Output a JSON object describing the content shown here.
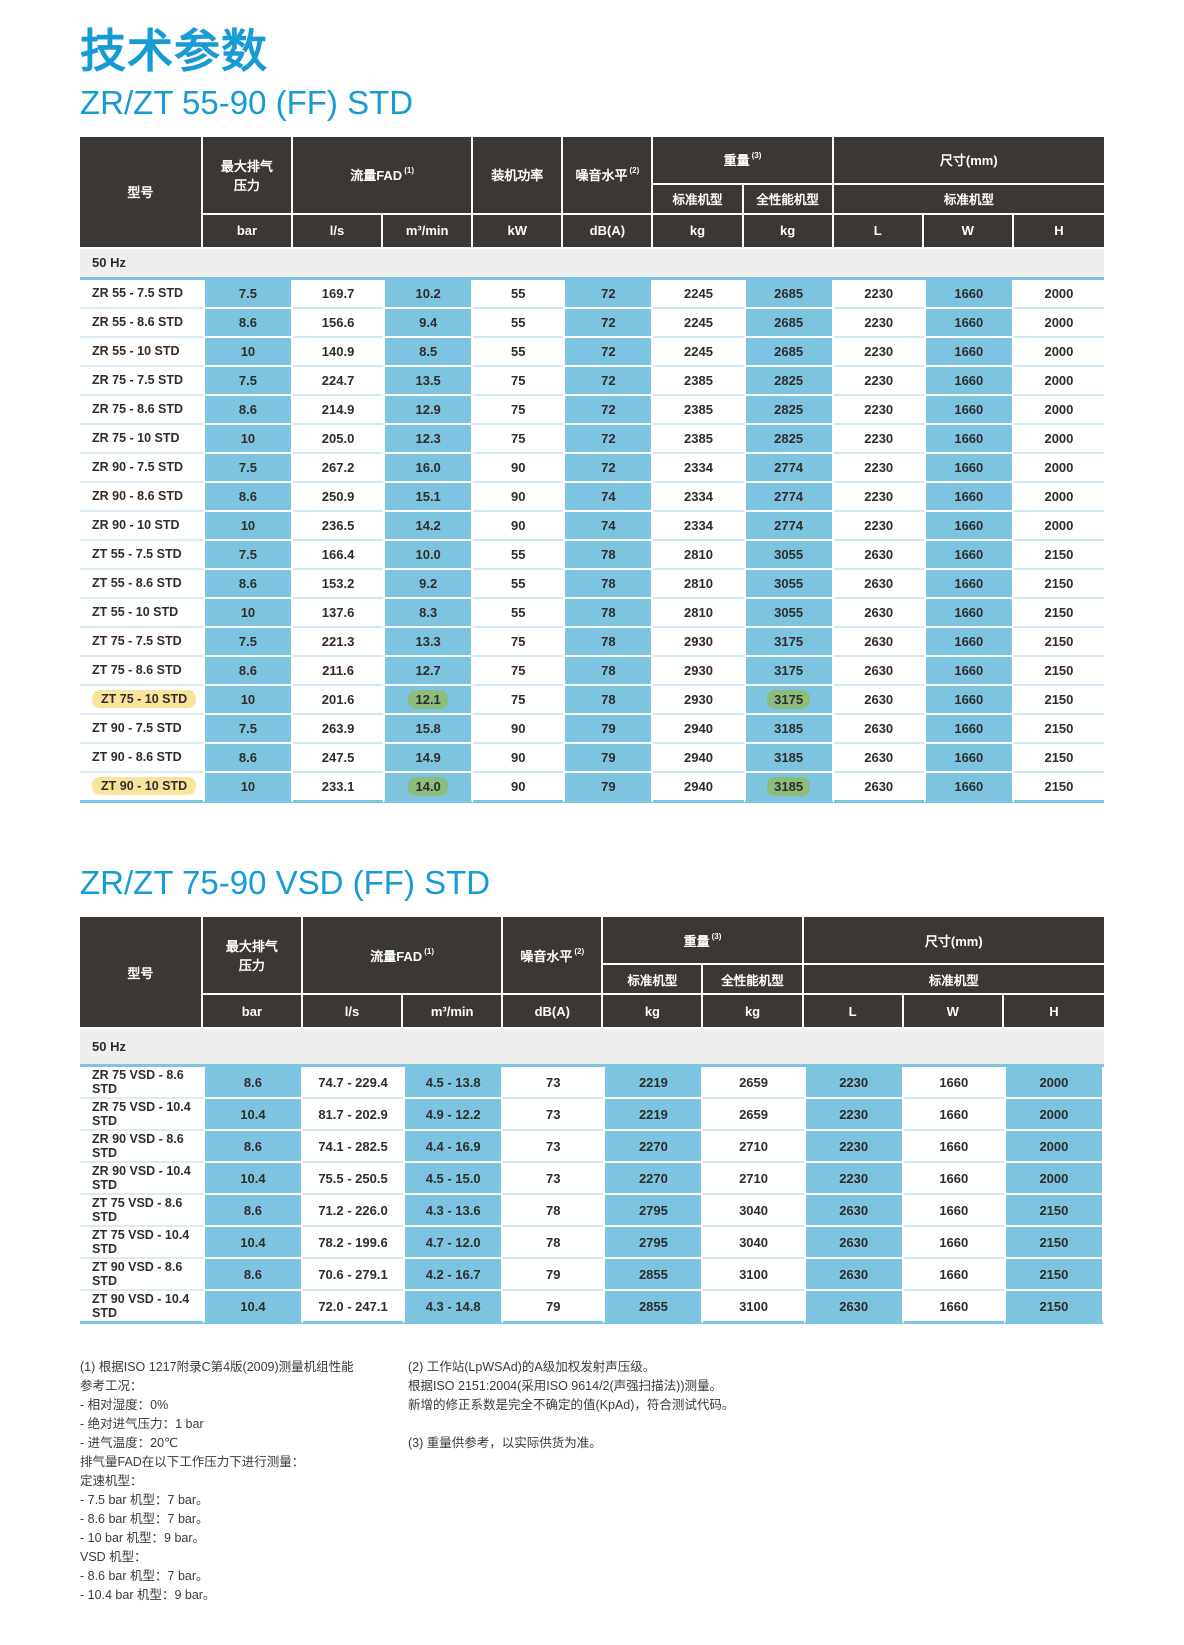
{
  "page": {
    "title": "技术参数"
  },
  "colors": {
    "accent_blue": "#169bd5",
    "header_dark": "#3b3734",
    "cell_blue": "#7dc4e0",
    "row_line_blue": "#cfe9f3",
    "group_band_gray": "#efefef",
    "highlight_yellow": "#f8e49c",
    "highlight_green": "#8cbd7c"
  },
  "table1": {
    "title": "ZR/ZT 55-90 (FF) STD",
    "header": {
      "model": "型号",
      "pressure_l1": "最大排气",
      "pressure_l2": "压力",
      "flow": "流量FAD",
      "flow_note": "(1)",
      "power": "装机功率",
      "noise": "噪音水平",
      "noise_note": "(2)",
      "weight": "重量",
      "weight_note": "(3)",
      "weight_std": "标准机型",
      "weight_full": "全性能机型",
      "dims": "尺寸(mm)",
      "dims_std": "标准机型"
    },
    "units": [
      "bar",
      "l/s",
      "m³/min",
      "kW",
      "dB(A)",
      "kg",
      "kg",
      "L",
      "W",
      "H"
    ],
    "group": "50 Hz",
    "rows": [
      {
        "model": "ZR 55 - 7.5 STD",
        "values": [
          "7.5",
          "169.7",
          "10.2",
          "55",
          "72",
          "2245",
          "2685",
          "2230",
          "1660",
          "2000"
        ]
      },
      {
        "model": "ZR 55 - 8.6 STD",
        "values": [
          "8.6",
          "156.6",
          "9.4",
          "55",
          "72",
          "2245",
          "2685",
          "2230",
          "1660",
          "2000"
        ]
      },
      {
        "model": "ZR 55 - 10 STD",
        "values": [
          "10",
          "140.9",
          "8.5",
          "55",
          "72",
          "2245",
          "2685",
          "2230",
          "1660",
          "2000"
        ]
      },
      {
        "model": "ZR 75 - 7.5 STD",
        "values": [
          "7.5",
          "224.7",
          "13.5",
          "75",
          "72",
          "2385",
          "2825",
          "2230",
          "1660",
          "2000"
        ]
      },
      {
        "model": "ZR 75 - 8.6 STD",
        "values": [
          "8.6",
          "214.9",
          "12.9",
          "75",
          "72",
          "2385",
          "2825",
          "2230",
          "1660",
          "2000"
        ]
      },
      {
        "model": "ZR 75 - 10 STD",
        "values": [
          "10",
          "205.0",
          "12.3",
          "75",
          "72",
          "2385",
          "2825",
          "2230",
          "1660",
          "2000"
        ]
      },
      {
        "model": "ZR 90 - 7.5 STD",
        "values": [
          "7.5",
          "267.2",
          "16.0",
          "90",
          "72",
          "2334",
          "2774",
          "2230",
          "1660",
          "2000"
        ]
      },
      {
        "model": "ZR 90 - 8.6 STD",
        "values": [
          "8.6",
          "250.9",
          "15.1",
          "90",
          "74",
          "2334",
          "2774",
          "2230",
          "1660",
          "2000"
        ]
      },
      {
        "model": "ZR 90 - 10 STD",
        "values": [
          "10",
          "236.5",
          "14.2",
          "90",
          "74",
          "2334",
          "2774",
          "2230",
          "1660",
          "2000"
        ]
      },
      {
        "model": "ZT 55 - 7.5 STD",
        "values": [
          "7.5",
          "166.4",
          "10.0",
          "55",
          "78",
          "2810",
          "3055",
          "2630",
          "1660",
          "2150"
        ]
      },
      {
        "model": "ZT 55 - 8.6 STD",
        "values": [
          "8.6",
          "153.2",
          "9.2",
          "55",
          "78",
          "2810",
          "3055",
          "2630",
          "1660",
          "2150"
        ]
      },
      {
        "model": "ZT 55 - 10 STD",
        "values": [
          "10",
          "137.6",
          "8.3",
          "55",
          "78",
          "2810",
          "3055",
          "2630",
          "1660",
          "2150"
        ]
      },
      {
        "model": "ZT 75 - 7.5 STD",
        "values": [
          "7.5",
          "221.3",
          "13.3",
          "75",
          "78",
          "2930",
          "3175",
          "2630",
          "1660",
          "2150"
        ]
      },
      {
        "model": "ZT 75 - 8.6 STD",
        "values": [
          "8.6",
          "211.6",
          "12.7",
          "75",
          "78",
          "2930",
          "3175",
          "2630",
          "1660",
          "2150"
        ]
      },
      {
        "model": "ZT 75 - 10 STD",
        "model_highlight": "yellow",
        "values": [
          "10",
          "201.6",
          "12.1",
          "75",
          "78",
          "2930",
          "3175",
          "2630",
          "1660",
          "2150"
        ],
        "value_highlights": {
          "2": "green",
          "6": "green"
        }
      },
      {
        "model": "ZT 90 - 7.5 STD",
        "values": [
          "7.5",
          "263.9",
          "15.8",
          "90",
          "79",
          "2940",
          "3185",
          "2630",
          "1660",
          "2150"
        ]
      },
      {
        "model": "ZT 90 - 8.6 STD",
        "values": [
          "8.6",
          "247.5",
          "14.9",
          "90",
          "79",
          "2940",
          "3185",
          "2630",
          "1660",
          "2150"
        ]
      },
      {
        "model": "ZT 90 - 10 STD",
        "model_highlight": "yellow",
        "values": [
          "10",
          "233.1",
          "14.0",
          "90",
          "79",
          "2940",
          "3185",
          "2630",
          "1660",
          "2150"
        ],
        "value_highlights": {
          "2": "green",
          "6": "green"
        }
      }
    ]
  },
  "table2": {
    "title": "ZR/ZT 75-90 VSD (FF) STD",
    "header": {
      "model": "型号",
      "pressure_l1": "最大排气",
      "pressure_l2": "压力",
      "flow": "流量FAD",
      "flow_note": "(1)",
      "noise": "噪音水平",
      "noise_note": "(2)",
      "weight": "重量",
      "weight_note": "(3)",
      "weight_std": "标准机型",
      "weight_full": "全性能机型",
      "dims": "尺寸(mm)",
      "dims_std": "标准机型"
    },
    "units": [
      "bar",
      "l/s",
      "m³/min",
      "dB(A)",
      "kg",
      "kg",
      "L",
      "W",
      "H"
    ],
    "group": "50 Hz",
    "rows": [
      {
        "model": "ZR 75 VSD - 8.6 STD",
        "values": [
          "8.6",
          "74.7 - 229.4",
          "4.5 - 13.8",
          "73",
          "2219",
          "2659",
          "2230",
          "1660",
          "2000"
        ]
      },
      {
        "model": "ZR 75 VSD - 10.4 STD",
        "values": [
          "10.4",
          "81.7 - 202.9",
          "4.9 - 12.2",
          "73",
          "2219",
          "2659",
          "2230",
          "1660",
          "2000"
        ]
      },
      {
        "model": "ZR 90 VSD - 8.6 STD",
        "values": [
          "8.6",
          "74.1 - 282.5",
          "4.4 - 16.9",
          "73",
          "2270",
          "2710",
          "2230",
          "1660",
          "2000"
        ]
      },
      {
        "model": "ZR 90 VSD - 10.4 STD",
        "values": [
          "10.4",
          "75.5 - 250.5",
          "4.5 - 15.0",
          "73",
          "2270",
          "2710",
          "2230",
          "1660",
          "2000"
        ]
      },
      {
        "model": "ZT 75 VSD - 8.6 STD",
        "values": [
          "8.6",
          "71.2 - 226.0",
          "4.3 - 13.6",
          "78",
          "2795",
          "3040",
          "2630",
          "1660",
          "2150"
        ]
      },
      {
        "model": "ZT 75 VSD - 10.4 STD",
        "values": [
          "10.4",
          "78.2 - 199.6",
          "4.7 - 12.0",
          "78",
          "2795",
          "3040",
          "2630",
          "1660",
          "2150"
        ]
      },
      {
        "model": "ZT 90 VSD - 8.6 STD",
        "values": [
          "8.6",
          "70.6 - 279.1",
          "4.2 - 16.7",
          "79",
          "2855",
          "3100",
          "2630",
          "1660",
          "2150"
        ]
      },
      {
        "model": "ZT 90 VSD - 10.4 STD",
        "values": [
          "10.4",
          "72.0 - 247.1",
          "4.3 - 14.8",
          "79",
          "2855",
          "3100",
          "2630",
          "1660",
          "2150"
        ]
      }
    ]
  },
  "footnotes": {
    "col1": [
      "(1) 根据ISO 1217附录C第4版(2009)测量机组性能",
      "参考工况：",
      "- 相对湿度：0%",
      "- 绝对进气压力：1 bar",
      "- 进气温度：20℃",
      "排气量FAD在以下工作压力下进行测量：",
      "定速机型：",
      "- 7.5 bar 机型：7 bar。",
      "- 8.6 bar 机型：7 bar。",
      "- 10 bar 机型：9 bar。",
      "VSD 机型：",
      "- 8.6 bar 机型：7 bar。",
      "- 10.4 bar 机型：9 bar。"
    ],
    "col2": [
      "(2) 工作站(LpWSAd)的A级加权发射声压级。",
      "根据ISO 2151:2004(采用ISO 9614/2(声强扫描法))测量。",
      "新增的修正系数是完全不确定的值(KpAd)，符合测试代码。",
      "",
      "(3) 重量供参考，以实际供货为准。"
    ]
  }
}
